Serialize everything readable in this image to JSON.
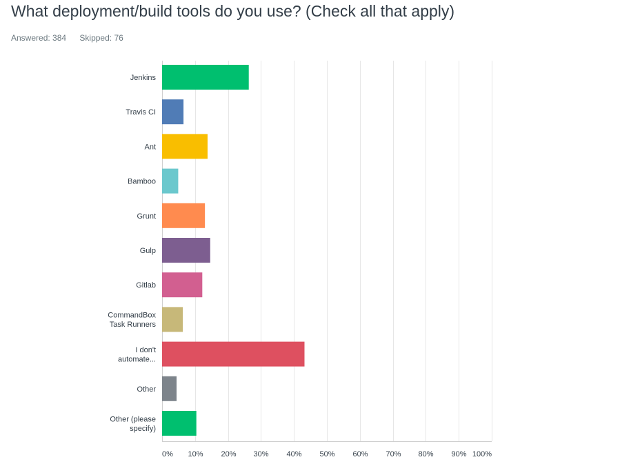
{
  "header": {
    "title": "What deployment/build tools do you use? (Check all that apply)",
    "answered": "Answered: 384",
    "skipped": "Skipped: 76"
  },
  "chart_data": {
    "type": "bar",
    "orientation": "horizontal",
    "categories": [
      [
        "Jenkins"
      ],
      [
        "Travis CI"
      ],
      [
        "Ant"
      ],
      [
        "Bamboo"
      ],
      [
        "Grunt"
      ],
      [
        "Gulp"
      ],
      [
        "Gitlab"
      ],
      [
        "CommandBox",
        "Task Runners"
      ],
      [
        "I don't",
        "automate..."
      ],
      [
        "Other"
      ],
      [
        "Other (please",
        "specify)"
      ]
    ],
    "values": [
      26.3,
      6.5,
      13.8,
      4.9,
      13.0,
      14.6,
      12.2,
      6.3,
      43.2,
      4.4,
      10.4
    ],
    "colors": [
      "#00bf6f",
      "#507cb6",
      "#f9be00",
      "#6bc8cd",
      "#ff8b4f",
      "#7d5e90",
      "#d25f90",
      "#c7b879",
      "#de5060",
      "#7d848b",
      "#00bf6f"
    ],
    "xlim": [
      0,
      100
    ],
    "x_ticks": [
      "0%",
      "10%",
      "20%",
      "30%",
      "40%",
      "50%",
      "60%",
      "70%",
      "80%",
      "90%",
      "100%"
    ],
    "grid": true
  }
}
